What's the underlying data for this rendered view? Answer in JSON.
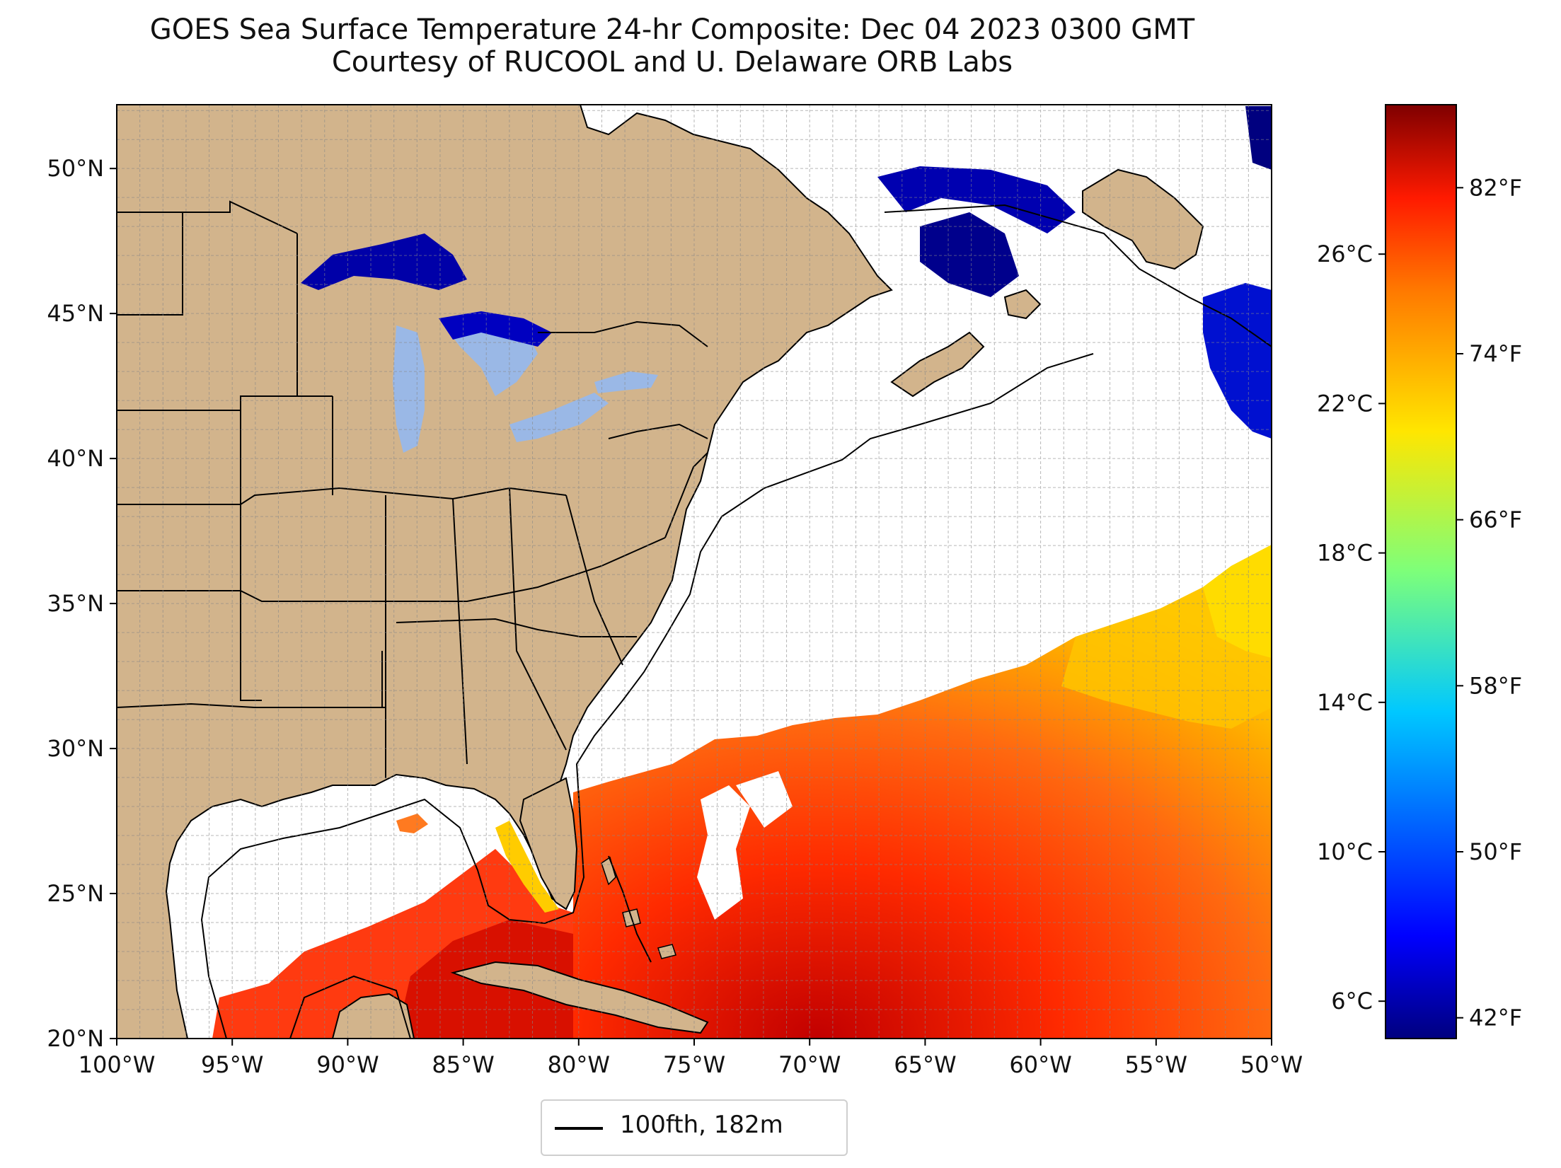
{
  "title": {
    "line1": "GOES Sea Surface Temperature 24-hr Composite: Dec 04 2023 0300 GMT",
    "line2": "Courtesy of RUCOOL and U. Delaware ORB Labs"
  },
  "map": {
    "extent": {
      "lon_min": -100,
      "lon_max": -50,
      "lat_min": 20,
      "lat_max": 52.2
    },
    "x_ticks": [
      {
        "lon": -100,
        "label": "100°W"
      },
      {
        "lon": -95,
        "label": "95°W"
      },
      {
        "lon": -90,
        "label": "90°W"
      },
      {
        "lon": -85,
        "label": "85°W"
      },
      {
        "lon": -80,
        "label": "80°W"
      },
      {
        "lon": -75,
        "label": "75°W"
      },
      {
        "lon": -70,
        "label": "70°W"
      },
      {
        "lon": -65,
        "label": "65°W"
      },
      {
        "lon": -60,
        "label": "60°W"
      },
      {
        "lon": -55,
        "label": "55°W"
      },
      {
        "lon": -50,
        "label": "50°W"
      }
    ],
    "y_ticks": [
      {
        "lat": 20,
        "label": "20°N"
      },
      {
        "lat": 25,
        "label": "25°N"
      },
      {
        "lat": 30,
        "label": "30°N"
      },
      {
        "lat": 35,
        "label": "35°N"
      },
      {
        "lat": 40,
        "label": "40°N"
      },
      {
        "lat": 45,
        "label": "45°N"
      },
      {
        "lat": 50,
        "label": "50°N"
      }
    ],
    "grid": true,
    "land_color": "#d2b48c",
    "lake_color": "#9ab8e6",
    "ocean_nodata_color": "#ffffff"
  },
  "colorbar": {
    "colormap": "jet",
    "celsius_ticks": [
      {
        "value": 6,
        "label": "6°C"
      },
      {
        "value": 10,
        "label": "10°C"
      },
      {
        "value": 14,
        "label": "14°C"
      },
      {
        "value": 18,
        "label": "18°C"
      },
      {
        "value": 22,
        "label": "22°C"
      },
      {
        "value": 26,
        "label": "26°C"
      }
    ],
    "fahrenheit_ticks": [
      {
        "value": 42,
        "label": "42°F"
      },
      {
        "value": 50,
        "label": "50°F"
      },
      {
        "value": 58,
        "label": "58°F"
      },
      {
        "value": 66,
        "label": "66°F"
      },
      {
        "value": 74,
        "label": "74°F"
      },
      {
        "value": 82,
        "label": "82°F"
      }
    ],
    "range_c": [
      5.0,
      30.0
    ]
  },
  "legend": {
    "label": "100fth, 182m"
  }
}
